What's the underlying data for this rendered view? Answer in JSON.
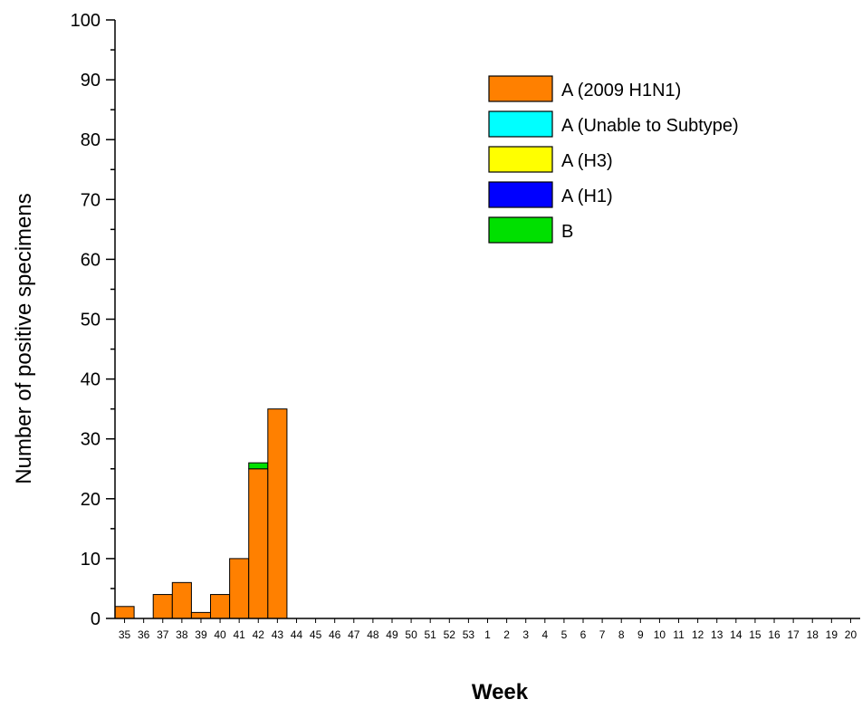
{
  "chart_data": {
    "type": "bar",
    "stacked": true,
    "xlabel": "Week",
    "ylabel": "Number of positive specimens",
    "ylim": [
      0,
      100
    ],
    "yticks": [
      0,
      10,
      20,
      30,
      40,
      50,
      60,
      70,
      80,
      90,
      100
    ],
    "grid": false,
    "legend_position": "top-right",
    "categories": [
      "35",
      "36",
      "37",
      "38",
      "39",
      "40",
      "41",
      "42",
      "43",
      "44",
      "45",
      "46",
      "47",
      "48",
      "49",
      "50",
      "51",
      "52",
      "53",
      "1",
      "2",
      "3",
      "4",
      "5",
      "6",
      "7",
      "8",
      "9",
      "10",
      "11",
      "12",
      "13",
      "14",
      "15",
      "16",
      "17",
      "18",
      "19",
      "20"
    ],
    "series": [
      {
        "name": "A (2009 H1N1)",
        "color": "#ff8000",
        "values": [
          2,
          0,
          4,
          6,
          1,
          4,
          10,
          25,
          35,
          0,
          0,
          0,
          0,
          0,
          0,
          0,
          0,
          0,
          0,
          0,
          0,
          0,
          0,
          0,
          0,
          0,
          0,
          0,
          0,
          0,
          0,
          0,
          0,
          0,
          0,
          0,
          0,
          0,
          0
        ]
      },
      {
        "name": "A (Unable to Subtype)",
        "color": "#00ffff",
        "values": [
          0,
          0,
          0,
          0,
          0,
          0,
          0,
          0,
          0,
          0,
          0,
          0,
          0,
          0,
          0,
          0,
          0,
          0,
          0,
          0,
          0,
          0,
          0,
          0,
          0,
          0,
          0,
          0,
          0,
          0,
          0,
          0,
          0,
          0,
          0,
          0,
          0,
          0,
          0
        ]
      },
      {
        "name": "A (H3)",
        "color": "#ffff00",
        "values": [
          0,
          0,
          0,
          0,
          0,
          0,
          0,
          0,
          0,
          0,
          0,
          0,
          0,
          0,
          0,
          0,
          0,
          0,
          0,
          0,
          0,
          0,
          0,
          0,
          0,
          0,
          0,
          0,
          0,
          0,
          0,
          0,
          0,
          0,
          0,
          0,
          0,
          0,
          0
        ]
      },
      {
        "name": "A (H1)",
        "color": "#0000ff",
        "values": [
          0,
          0,
          0,
          0,
          0,
          0,
          0,
          0,
          0,
          0,
          0,
          0,
          0,
          0,
          0,
          0,
          0,
          0,
          0,
          0,
          0,
          0,
          0,
          0,
          0,
          0,
          0,
          0,
          0,
          0,
          0,
          0,
          0,
          0,
          0,
          0,
          0,
          0,
          0
        ]
      },
      {
        "name": "B",
        "color": "#00e000",
        "values": [
          0,
          0,
          0,
          0,
          0,
          0,
          0,
          1,
          0,
          0,
          0,
          0,
          0,
          0,
          0,
          0,
          0,
          0,
          0,
          0,
          0,
          0,
          0,
          0,
          0,
          0,
          0,
          0,
          0,
          0,
          0,
          0,
          0,
          0,
          0,
          0,
          0,
          0,
          0
        ]
      }
    ]
  }
}
